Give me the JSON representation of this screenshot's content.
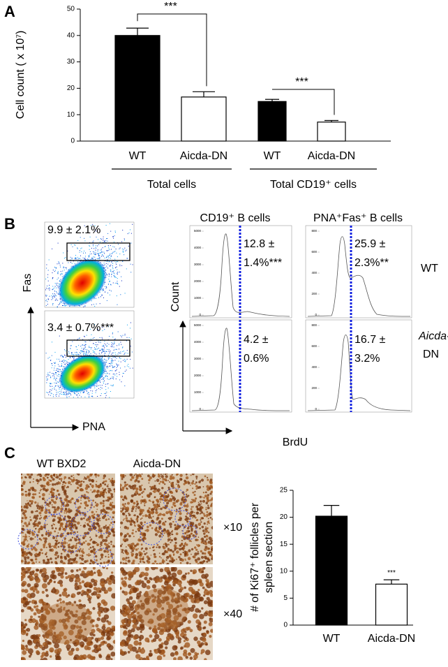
{
  "panels": {
    "a": "A",
    "b": "B",
    "c": "C"
  },
  "chart_data": [
    {
      "type": "bar",
      "ylabel": "Cell count ( x 10⁷)",
      "categories": [
        "WT",
        "Aicda-DN",
        "WT",
        "Aicda-DN"
      ],
      "values": [
        40,
        16.7,
        15,
        7.2
      ],
      "errors": [
        2.8,
        2,
        0.8,
        0.6
      ],
      "colors": [
        "#000000",
        "#ffffff",
        "#000000",
        "#ffffff"
      ],
      "groups": [
        "Total cells",
        "Total CD19⁺ cells"
      ],
      "significance": [
        "***",
        "***"
      ],
      "ylim": [
        0,
        50
      ],
      "yticks": [
        0,
        10,
        20,
        30,
        40,
        50
      ]
    },
    {
      "type": "bar",
      "ylabel": [
        "# of Ki67⁺ follicles per",
        "spleen section"
      ],
      "categories": [
        "WT",
        "Aicda-DN"
      ],
      "values": [
        20.2,
        7.6
      ],
      "errors": [
        2,
        0.8
      ],
      "colors": [
        "#000000",
        "#ffffff"
      ],
      "significance": [
        "***"
      ],
      "ylim": [
        0,
        25
      ],
      "yticks": [
        0,
        5,
        10,
        15,
        20,
        25
      ]
    }
  ],
  "panel_b": {
    "gates": [
      "9.9 ± 2.1%",
      "3.4 ± 0.7%***"
    ],
    "y_axis": "Fas",
    "x_axis": "PNA",
    "columns": [
      "CD19⁺ B cells",
      "PNA⁺Fas⁺ B cells"
    ],
    "stats": [
      [
        "12.8 ±",
        "1.4%***"
      ],
      [
        "25.9 ±",
        "2.3%**"
      ],
      [
        "4.2 ±",
        "0.6%"
      ],
      [
        "16.7 ±",
        "3.2%"
      ]
    ],
    "rows": [
      [
        "WT"
      ],
      [
        "Aicda-",
        "DN"
      ]
    ],
    "hist_y": "Count",
    "hist_x": "BrdU",
    "hist_ticks": [
      [
        "5000",
        "4000",
        "3000",
        "2000",
        "1000",
        "0"
      ],
      [
        "800",
        "600",
        "400",
        "200",
        "0"
      ],
      [
        "5000",
        "4000",
        "3000",
        "2000",
        "1000",
        "0"
      ],
      [
        "800",
        "600",
        "400",
        "200",
        "0"
      ]
    ]
  },
  "panel_c": {
    "columns": [
      "WT BXD2",
      "Aicda-DN"
    ],
    "magnifications": [
      "×10",
      "×40"
    ]
  }
}
